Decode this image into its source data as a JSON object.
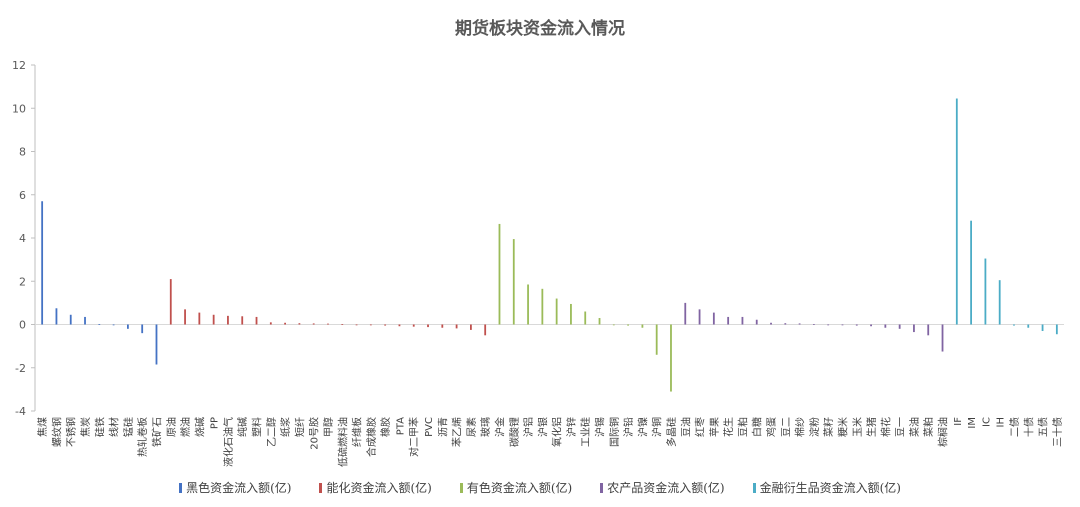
{
  "chart_data": {
    "type": "bar",
    "title": "期货板块资金流入情况",
    "ylim": [
      -4,
      12
    ],
    "yticks": [
      -4,
      -2,
      0,
      2,
      4,
      6,
      8,
      10,
      12
    ],
    "series": [
      {
        "name": "黑色资金流入额(亿)",
        "color": "#4472C4",
        "points": [
          {
            "label": "焦煤",
            "value": 5.7
          },
          {
            "label": "螺纹钢",
            "value": 0.75
          },
          {
            "label": "不锈钢",
            "value": 0.45
          },
          {
            "label": "焦炭",
            "value": 0.35
          },
          {
            "label": "硅铁",
            "value": 0.02
          },
          {
            "label": "线材",
            "value": 0.0
          },
          {
            "label": "锰硅",
            "value": -0.2
          },
          {
            "label": "热轧卷板",
            "value": -0.4
          },
          {
            "label": "铁矿石",
            "value": -1.85
          }
        ]
      },
      {
        "name": "能化资金流入额(亿)",
        "color": "#C0504D",
        "points": [
          {
            "label": "原油",
            "value": 2.1
          },
          {
            "label": "燃油",
            "value": 0.7
          },
          {
            "label": "烧碱",
            "value": 0.55
          },
          {
            "label": "PP",
            "value": 0.45
          },
          {
            "label": "液化石油气",
            "value": 0.4
          },
          {
            "label": "纯碱",
            "value": 0.38
          },
          {
            "label": "塑料",
            "value": 0.35
          },
          {
            "label": "乙二醇",
            "value": 0.1
          },
          {
            "label": "纸浆",
            "value": 0.08
          },
          {
            "label": "短纤",
            "value": 0.06
          },
          {
            "label": "20号胶",
            "value": 0.05
          },
          {
            "label": "甲醇",
            "value": 0.04
          },
          {
            "label": "低硫燃料油",
            "value": 0.02
          },
          {
            "label": "纤维板",
            "value": 0.0
          },
          {
            "label": "合成橡胶",
            "value": -0.02
          },
          {
            "label": "橡胶",
            "value": -0.05
          },
          {
            "label": "PTA",
            "value": -0.08
          },
          {
            "label": "对二甲苯",
            "value": -0.1
          },
          {
            "label": "PVC",
            "value": -0.12
          },
          {
            "label": "沥青",
            "value": -0.15
          },
          {
            "label": "苯乙烯",
            "value": -0.18
          },
          {
            "label": "尿素",
            "value": -0.25
          },
          {
            "label": "玻璃",
            "value": -0.5
          }
        ]
      },
      {
        "name": "有色资金流入额(亿)",
        "color": "#9BBB59",
        "points": [
          {
            "label": "沪金",
            "value": 4.65
          },
          {
            "label": "碳酸锂",
            "value": 3.95
          },
          {
            "label": "沪铝",
            "value": 1.85
          },
          {
            "label": "沪银",
            "value": 1.65
          },
          {
            "label": "氧化铝",
            "value": 1.2
          },
          {
            "label": "沪锌",
            "value": 0.95
          },
          {
            "label": "工业硅",
            "value": 0.6
          },
          {
            "label": "沪锡",
            "value": 0.3
          },
          {
            "label": "国际铜",
            "value": 0.0
          },
          {
            "label": "沪铅",
            "value": -0.05
          },
          {
            "label": "沪镍",
            "value": -0.15
          },
          {
            "label": "沪铜",
            "value": -1.4
          },
          {
            "label": "多晶硅",
            "value": -3.1
          }
        ]
      },
      {
        "name": "农产品资金流入额(亿)",
        "color": "#8064A2",
        "points": [
          {
            "label": "豆油",
            "value": 1.0
          },
          {
            "label": "红枣",
            "value": 0.7
          },
          {
            "label": "苹果",
            "value": 0.55
          },
          {
            "label": "花生",
            "value": 0.35
          },
          {
            "label": "豆粕",
            "value": 0.35
          },
          {
            "label": "白糖",
            "value": 0.22
          },
          {
            "label": "鸡蛋",
            "value": 0.08
          },
          {
            "label": "豆二",
            "value": 0.06
          },
          {
            "label": "棉纱",
            "value": 0.05
          },
          {
            "label": "淀粉",
            "value": 0.02
          },
          {
            "label": "菜籽",
            "value": 0.0
          },
          {
            "label": "粳米",
            "value": -0.02
          },
          {
            "label": "玉米",
            "value": -0.05
          },
          {
            "label": "生猪",
            "value": -0.08
          },
          {
            "label": "棉花",
            "value": -0.15
          },
          {
            "label": "豆一",
            "value": -0.2
          },
          {
            "label": "菜油",
            "value": -0.35
          },
          {
            "label": "菜粕",
            "value": -0.5
          },
          {
            "label": "棕榈油",
            "value": -1.25
          }
        ]
      },
      {
        "name": "金融衍生品资金流入额(亿)",
        "color": "#4BACC6",
        "points": [
          {
            "label": "IF",
            "value": 10.45
          },
          {
            "label": "IM",
            "value": 4.8
          },
          {
            "label": "IC",
            "value": 3.05
          },
          {
            "label": "IH",
            "value": 2.05
          },
          {
            "label": "二债",
            "value": -0.05
          },
          {
            "label": "十债",
            "value": -0.15
          },
          {
            "label": "五债",
            "value": -0.3
          },
          {
            "label": "三十债",
            "value": -0.45
          }
        ]
      }
    ]
  }
}
